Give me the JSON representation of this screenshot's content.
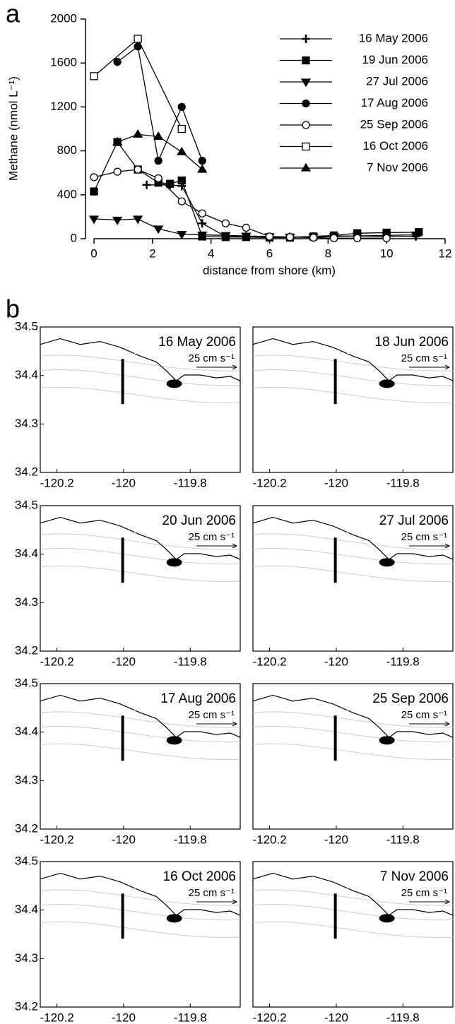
{
  "panel_a_label": "a",
  "panel_b_label": "b",
  "chart_data": [
    {
      "type": "line",
      "xlabel": "distance from shore (km)",
      "ylabel": "Methane (nmol L⁻¹)",
      "xlim": [
        0,
        12
      ],
      "xticks": [
        0,
        2,
        4,
        6,
        8,
        10,
        12
      ],
      "ylim": [
        0,
        2000
      ],
      "yticks": [
        0,
        400,
        800,
        1200,
        1600,
        2000
      ],
      "series": [
        {
          "name": "16 May 2006",
          "color": "#000000",
          "marker": "plus",
          "x": [
            1.8,
            2.6,
            3.0,
            3.7,
            4.5,
            5.2,
            6.0,
            6.7,
            7.5,
            8.2,
            9.0,
            10.0,
            11.0
          ],
          "values": [
            490,
            490,
            480,
            140,
            20,
            20,
            15,
            15,
            20,
            25,
            25,
            20,
            20
          ]
        },
        {
          "name": "19 Jun 2006",
          "color": "#000000",
          "marker": "square",
          "x": [
            0,
            0.8,
            1.5,
            2.2,
            2.6,
            3.0,
            3.7,
            4.5,
            5.2,
            6.0,
            6.7,
            7.5,
            8.2,
            9.0,
            10.0,
            11.1
          ],
          "values": [
            430,
            880,
            630,
            510,
            500,
            530,
            20,
            15,
            15,
            10,
            10,
            20,
            30,
            50,
            55,
            60
          ]
        },
        {
          "name": "27 Jul 2006",
          "color": "#000000",
          "marker": "triangle-down",
          "x": [
            0,
            0.8,
            1.5,
            2.2,
            3.0,
            3.7,
            4.5,
            5.2,
            6.0,
            6.7,
            7.5,
            8.2,
            9.0,
            10.0,
            11.0
          ],
          "values": [
            180,
            170,
            180,
            90,
            40,
            35,
            30,
            25,
            20,
            15,
            15,
            20,
            25,
            30,
            35
          ]
        },
        {
          "name": "17 Aug 2006",
          "color": "#000000",
          "marker": "circle",
          "x": [
            0.8,
            1.5,
            2.2,
            3.0,
            3.7
          ],
          "values": [
            1610,
            1750,
            710,
            1200,
            710
          ]
        },
        {
          "name": "25 Sep 2006",
          "color": "#000000",
          "marker": "circle-open",
          "x": [
            0,
            0.8,
            1.5,
            2.2,
            3.0,
            3.7,
            4.5,
            5.2,
            6.0,
            6.7,
            7.5,
            8.2,
            9.0,
            10.0
          ],
          "values": [
            560,
            610,
            630,
            550,
            340,
            230,
            140,
            100,
            20,
            15,
            10,
            5,
            5,
            5
          ]
        },
        {
          "name": "16 Oct 2006",
          "color": "#000000",
          "marker": "square-open",
          "x": [
            0,
            1.5,
            3.0
          ],
          "values": [
            1480,
            1820,
            1000
          ]
        },
        {
          "name": "7 Nov 2006",
          "color": "#000000",
          "marker": "triangle-up",
          "x": [
            0.8,
            1.5,
            2.2,
            3.0,
            3.7
          ],
          "values": [
            880,
            950,
            930,
            790,
            630
          ]
        }
      ]
    },
    {
      "type": "map",
      "title": "16 May 2006",
      "scale_label": "25 cm s⁻¹",
      "xlim": [
        -120.25,
        -119.65
      ],
      "xticks": [
        -120.2,
        -120,
        -119.8
      ],
      "ylim": [
        34.2,
        34.5
      ],
      "yticks": [
        34.2,
        34.3,
        34.4,
        34.5
      ]
    },
    {
      "type": "map",
      "title": "18 Jun 2006",
      "scale_label": "25 cm s⁻¹",
      "xlim": [
        -120.25,
        -119.65
      ],
      "xticks": [
        -120.2,
        -120,
        -119.8
      ],
      "ylim": [
        34.2,
        34.5
      ]
    },
    {
      "type": "map",
      "title": "20 Jun 2006",
      "scale_label": "25 cm s⁻¹",
      "xlim": [
        -120.25,
        -119.65
      ],
      "xticks": [
        -120.2,
        -120,
        -119.8
      ],
      "ylim": [
        34.2,
        34.5
      ],
      "yticks": [
        34.2,
        34.3,
        34.4,
        34.5
      ]
    },
    {
      "type": "map",
      "title": "27 Jul 2006",
      "scale_label": "25 cm s⁻¹",
      "xlim": [
        -120.25,
        -119.65
      ],
      "xticks": [
        -120.2,
        -120,
        -119.8
      ],
      "ylim": [
        34.2,
        34.5
      ]
    },
    {
      "type": "map",
      "title": "17 Aug 2006",
      "scale_label": "25 cm s⁻¹",
      "xlim": [
        -120.25,
        -119.65
      ],
      "xticks": [
        -120.2,
        -120,
        -119.8
      ],
      "ylim": [
        34.2,
        34.5
      ],
      "yticks": [
        34.2,
        34.3,
        34.4,
        34.5
      ]
    },
    {
      "type": "map",
      "title": "25 Sep 2006",
      "scale_label": "25 cm s⁻¹",
      "xlim": [
        -120.25,
        -119.65
      ],
      "xticks": [
        -120.2,
        -120,
        -119.8
      ],
      "ylim": [
        34.2,
        34.5
      ]
    },
    {
      "type": "map",
      "title": "16 Oct 2006",
      "scale_label": "25 cm s⁻¹",
      "xlim": [
        -120.25,
        -119.65
      ],
      "xticks": [
        -120.2,
        -120,
        -119.8
      ],
      "ylim": [
        34.2,
        34.5
      ],
      "yticks": [
        34.2,
        34.3,
        34.4,
        34.5
      ]
    },
    {
      "type": "map",
      "title": "7 Nov 2006",
      "scale_label": "25 cm s⁻¹",
      "xlim": [
        -120.25,
        -119.65
      ],
      "xticks": [
        -120.2,
        -120,
        -119.8
      ],
      "ylim": [
        34.2,
        34.5
      ]
    }
  ]
}
